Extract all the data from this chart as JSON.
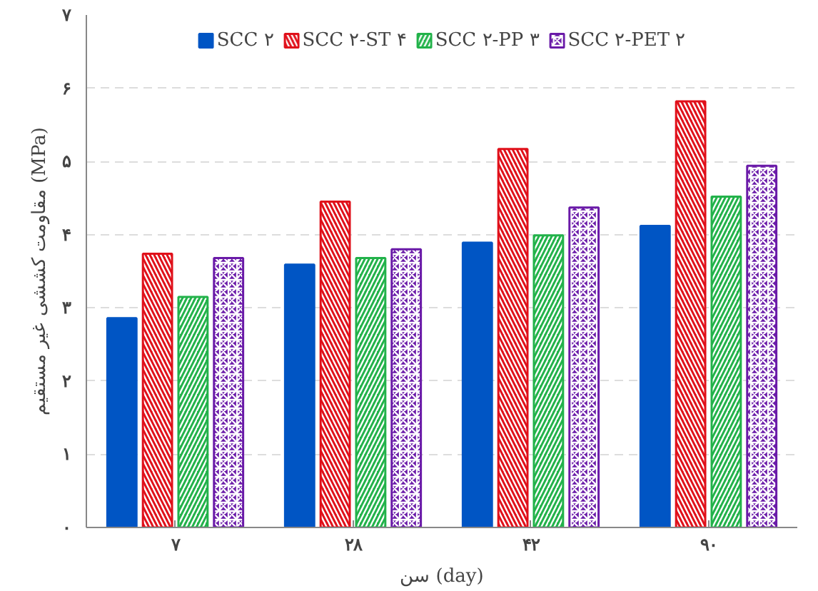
{
  "chart_data": {
    "type": "bar",
    "categories": [
      "۷",
      "۲۸",
      "۴۲",
      "۹۰"
    ],
    "series": [
      {
        "name": "SCC ۲",
        "color": "#0055c4",
        "values": [
          2.86,
          3.59,
          3.89,
          4.12
        ]
      },
      {
        "name": "SCC ۲-ST ۴",
        "color": "#e0101a",
        "values": [
          3.74,
          4.45,
          5.17,
          5.82
        ]
      },
      {
        "name": "SCC ۲-PP ۳",
        "color": "#22b24a",
        "values": [
          3.15,
          3.68,
          3.99,
          4.52
        ]
      },
      {
        "name": "SCC ۲-PET ۲",
        "color": "#6a1aa8",
        "values": [
          3.68,
          3.8,
          4.37,
          4.94
        ]
      }
    ],
    "xlabel": "سن (day)",
    "ylabel": "مقاومت کششی غیر مستقیم (MPa)",
    "ylim": [
      0,
      7
    ],
    "yticks": [
      {
        "value": 0,
        "label": "۰"
      },
      {
        "value": 1,
        "label": "۱"
      },
      {
        "value": 2,
        "label": "۲"
      },
      {
        "value": 3,
        "label": "۳"
      },
      {
        "value": 4,
        "label": "۴"
      },
      {
        "value": 5,
        "label": "۵"
      },
      {
        "value": 6,
        "label": "۶"
      },
      {
        "value": 7,
        "label": "۷"
      }
    ],
    "grid": "y",
    "legend": "top"
  }
}
